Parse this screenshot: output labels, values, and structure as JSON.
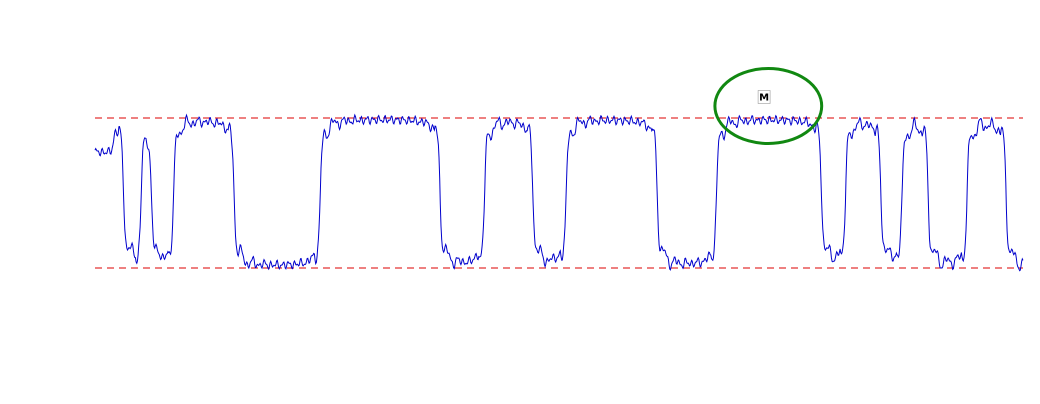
{
  "chart_data": {
    "type": "line",
    "title": "",
    "xlabel": "",
    "ylabel": "",
    "xlim": [
      0,
      100
    ],
    "ylim": [
      -0.35,
      1.35
    ],
    "grid": false,
    "legend": "none",
    "reference_lines": [
      {
        "y": 1,
        "color": "#dd0000",
        "style": "dashed"
      },
      {
        "y": 0,
        "color": "#dd0000",
        "style": "dashed"
      }
    ],
    "series": [
      {
        "color": "#0000cc",
        "square_wave": {
          "levels": [
            0,
            1
          ],
          "start_level": 0.78,
          "transitions": [
            {
              "x": 2.0,
              "level": 1
            },
            {
              "x": 3.1,
              "level": 0
            },
            {
              "x": 5.0,
              "level": 1
            },
            {
              "x": 6.1,
              "level": 0
            },
            {
              "x": 8.5,
              "level": 1
            },
            {
              "x": 15.0,
              "level": 0
            },
            {
              "x": 24.3,
              "level": 1
            },
            {
              "x": 37.2,
              "level": 0
            },
            {
              "x": 42.0,
              "level": 1
            },
            {
              "x": 47.2,
              "level": 0
            },
            {
              "x": 50.8,
              "level": 1
            },
            {
              "x": 60.6,
              "level": 0
            },
            {
              "x": 67.0,
              "level": 1
            },
            {
              "x": 78.3,
              "level": 0
            },
            {
              "x": 80.9,
              "level": 1
            },
            {
              "x": 84.7,
              "level": 0
            },
            {
              "x": 87.0,
              "level": 1
            },
            {
              "x": 89.8,
              "level": 0
            },
            {
              "x": 94.0,
              "level": 1
            },
            {
              "x": 98.2,
              "level": 0
            }
          ]
        }
      }
    ],
    "annotations": [
      {
        "type": "ellipse",
        "color": "#118811",
        "x_range": [
          66.8,
          78.3
        ],
        "y_range": [
          0.83,
          1.33
        ]
      },
      {
        "type": "marker",
        "label": "M",
        "x": 72.1,
        "y": 1.14
      }
    ]
  }
}
